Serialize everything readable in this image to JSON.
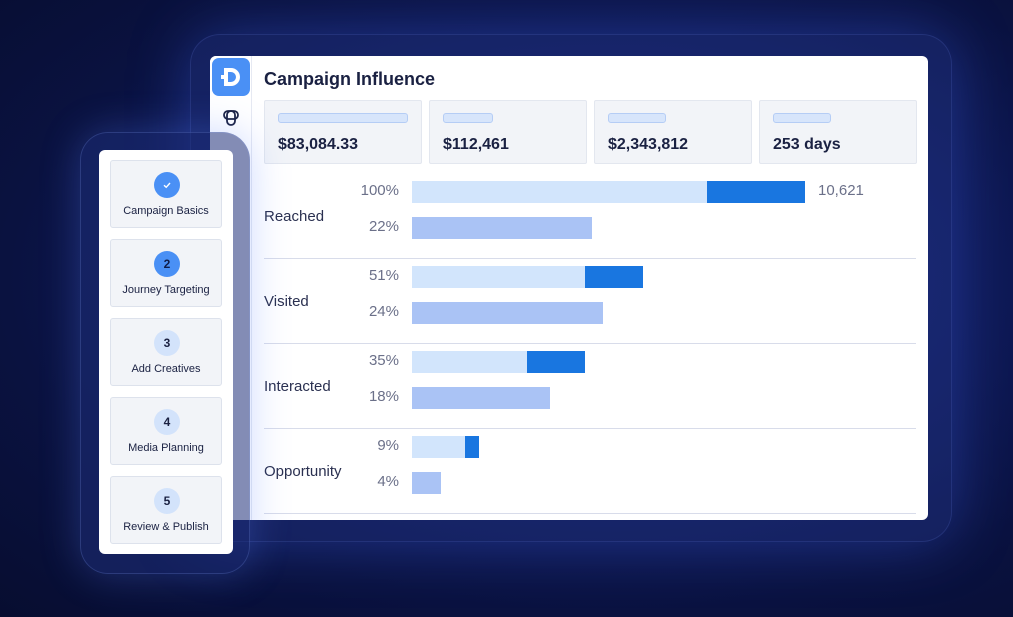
{
  "app": {
    "logo_letter": "D",
    "title": "Campaign Influence"
  },
  "stats": [
    {
      "value": "$83,084.33"
    },
    {
      "value": "$112,461"
    },
    {
      "value": "$2,343,812"
    },
    {
      "value": "253 days"
    }
  ],
  "funnel": [
    {
      "label": "Reached",
      "top_pct": "100%",
      "bottom_pct": "22%",
      "count": "10,621"
    },
    {
      "label": "Visited",
      "top_pct": "51%",
      "bottom_pct": "24%"
    },
    {
      "label": "Interacted",
      "top_pct": "35%",
      "bottom_pct": "18%"
    },
    {
      "label": "Opportunity",
      "top_pct": "9%",
      "bottom_pct": "4%"
    }
  ],
  "steps": [
    {
      "number": "✓",
      "label": "Campaign Basics",
      "state": "done"
    },
    {
      "number": "2",
      "label": "Journey Targeting",
      "state": "active"
    },
    {
      "number": "3",
      "label": "Add Creatives",
      "state": "pending"
    },
    {
      "number": "4",
      "label": "Media Planning",
      "state": "pending"
    },
    {
      "number": "5",
      "label": "Review & Publish",
      "state": "pending"
    }
  ],
  "colors": {
    "accent": "#4a90f5",
    "bar_light": "#d2e5fc",
    "bar_dark": "#1976e0",
    "bar_secondary": "#aac3f5",
    "background": "#0a1240"
  },
  "icons": {
    "rail_icon": "integration-knot-icon",
    "done_icon": "checkmark-icon"
  }
}
